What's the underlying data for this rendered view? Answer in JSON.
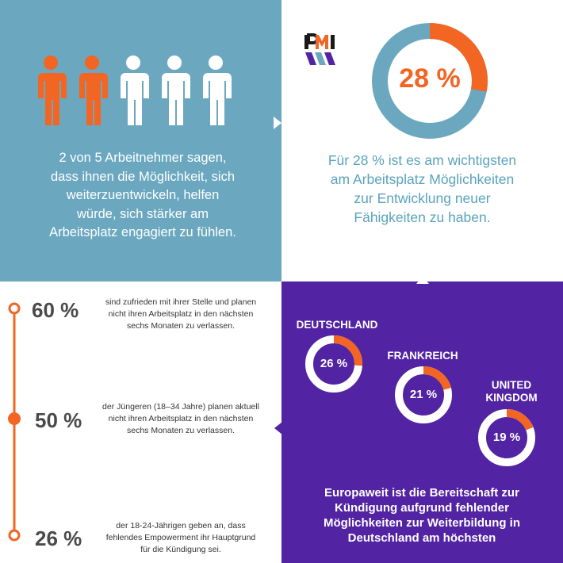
{
  "top_left": {
    "people": [
      {
        "icon": "person-icon",
        "highlighted": true
      },
      {
        "icon": "person-icon",
        "highlighted": true
      },
      {
        "icon": "person-icon",
        "highlighted": false
      },
      {
        "icon": "person-icon",
        "highlighted": false
      },
      {
        "icon": "person-icon",
        "highlighted": false
      }
    ],
    "text_lines": [
      "2 von 5 Arbeitnehmer sagen,",
      "dass ihnen die Möglichkeit, sich",
      "weiterzuentwickeln, helfen",
      "würde, sich stärker am",
      "Arbeitsplatz engagiert zu fühlen."
    ],
    "colors": {
      "background": "#6ba8c0",
      "highlight": "#f26522",
      "base": "#ffffff"
    }
  },
  "top_right": {
    "logo": "pmi-logo",
    "percent_label": "28 %",
    "percent_value": 28,
    "text_lines": [
      "Für 28 % ist es am wichtigsten",
      "am Arbeitsplatz Möglichkeiten",
      "zur Entwicklung neuer",
      "Fähigkeiten zu haben."
    ],
    "colors": {
      "ring": "#6ba8c0",
      "accent": "#f26522",
      "text": "#5aa3bd"
    }
  },
  "bottom_left": {
    "stats": [
      {
        "value": "60 %",
        "lines": [
          "sind zufrieden mit ihrer Stelle und planen",
          "nicht ihren Arbeitsplatz in den nächsten",
          "sechs Monaten zu verlassen."
        ]
      },
      {
        "value": "50 %",
        "lines": [
          "der Jüngeren (18–34 Jahre) planen aktuell",
          "nicht ihren Arbeitsplatz in den nächsten",
          "sechs Monaten zu verlassen."
        ]
      },
      {
        "value": "26 %",
        "lines": [
          "der 18-24-Jährigen geben an, dass",
          "fehlendes Empowerment ihr Hauptgrund",
          "für die Kündigung sei."
        ]
      }
    ],
    "colors": {
      "timeline": "#f26522"
    }
  },
  "bottom_right": {
    "countries": [
      {
        "name_lines": [
          "DEUTSCHLAND"
        ],
        "label": "26 %",
        "value": 26
      },
      {
        "name_lines": [
          "FRANKREICH"
        ],
        "label": "21 %",
        "value": 21
      },
      {
        "name_lines": [
          "UNITED",
          "KINGDOM"
        ],
        "label": "19 %",
        "value": 19
      }
    ],
    "text_lines": [
      "Europaweit ist die Bereitschaft zur",
      "Kündigung aufgrund fehlender",
      "Möglichkeiten zur Weiterbildung in",
      "Deutschland am höchsten"
    ],
    "colors": {
      "background": "#5223a3",
      "ring": "#ffffff",
      "accent": "#f26522"
    }
  }
}
